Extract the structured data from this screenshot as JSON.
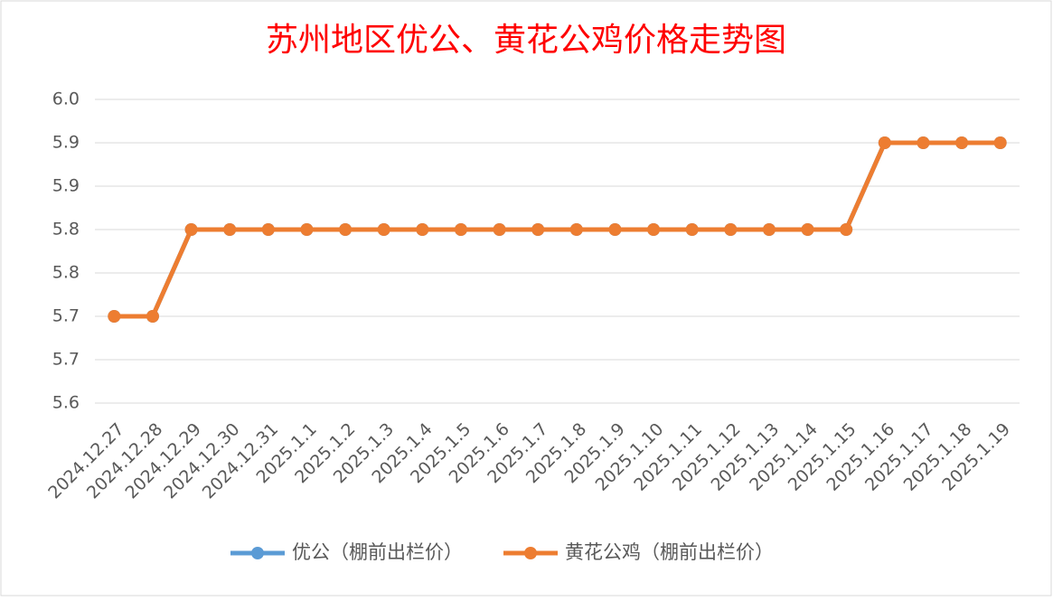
{
  "chart_data": {
    "type": "line",
    "title": "苏州地区优公、黄花公鸡价格走势图",
    "categories": [
      "2024.12.27",
      "2024.12.28",
      "2024.12.29",
      "2024.12.30",
      "2024.12.31",
      "2025.1.1",
      "2025.1.2",
      "2025.1.3",
      "2025.1.4",
      "2025.1.5",
      "2025.1.6",
      "2025.1.7",
      "2025.1.8",
      "2025.1.9",
      "2025.1.10",
      "2025.1.11",
      "2025.1.12",
      "2025.1.13",
      "2025.1.14",
      "2025.1.15",
      "2025.1.16",
      "2025.1.17",
      "2025.1.18",
      "2025.1.19"
    ],
    "series": [
      {
        "name": "优公（棚前出栏价）",
        "color": "#5b9bd5",
        "values": [
          5.7,
          5.7,
          5.8,
          5.8,
          5.8,
          5.8,
          5.8,
          5.8,
          5.8,
          5.8,
          5.8,
          5.8,
          5.8,
          5.8,
          5.8,
          5.8,
          5.8,
          5.8,
          5.8,
          5.8,
          5.9,
          5.9,
          5.9,
          5.9
        ]
      },
      {
        "name": "黄花公鸡（棚前出栏价）",
        "color": "#ed7d31",
        "values": [
          5.7,
          5.7,
          5.8,
          5.8,
          5.8,
          5.8,
          5.8,
          5.8,
          5.8,
          5.8,
          5.8,
          5.8,
          5.8,
          5.8,
          5.8,
          5.8,
          5.8,
          5.8,
          5.8,
          5.8,
          5.9,
          5.9,
          5.9,
          5.9
        ]
      }
    ],
    "ylim": [
      5.6,
      5.95
    ],
    "yticks": [
      5.6,
      {
        "value": 5.65,
        "label": "5.7"
      },
      5.7,
      {
        "value": 5.75,
        "label": "5.8"
      },
      5.8,
      {
        "value": 5.85,
        "label": "5.9"
      },
      5.9,
      {
        "value": 5.95,
        "label": "6.0"
      }
    ],
    "grid": true,
    "legend": "bottom"
  }
}
